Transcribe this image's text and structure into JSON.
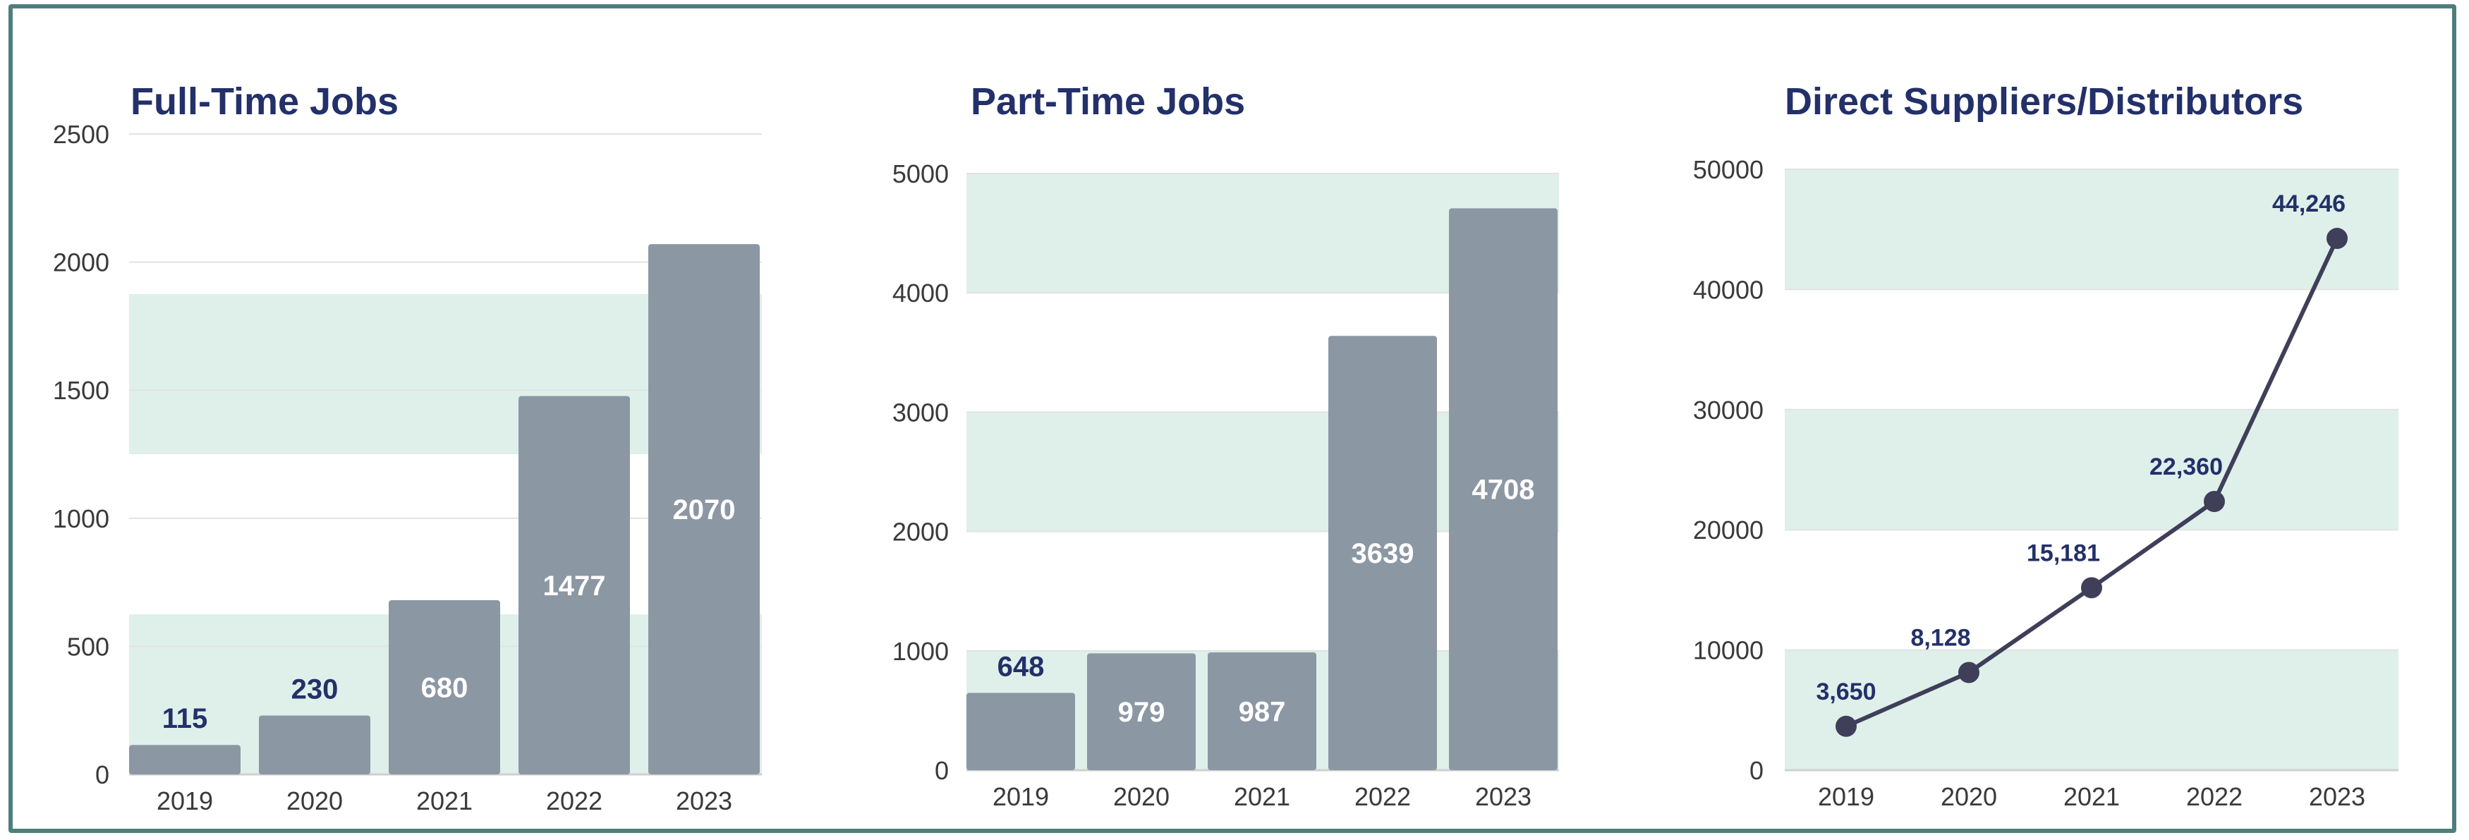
{
  "chart_data": [
    {
      "type": "bar",
      "title": "Full-Time Jobs",
      "categories": [
        "2019",
        "2020",
        "2021",
        "2022",
        "2023"
      ],
      "values": [
        115,
        230,
        680,
        1477,
        2070
      ],
      "data_labels": [
        "115",
        "230",
        "680",
        "1477",
        "2070"
      ],
      "ylim": [
        0,
        2500
      ],
      "yticks": [
        "0",
        "500",
        "1000",
        "1500",
        "2000",
        "2500"
      ],
      "grid": true,
      "colors": {
        "bar": "#8c97a4",
        "band": "#dff0ea",
        "label_inside": "#ffffff",
        "label_outside": "#233069"
      }
    },
    {
      "type": "bar",
      "title": "Part-Time Jobs",
      "categories": [
        "2019",
        "2020",
        "2021",
        "2022",
        "2023"
      ],
      "values": [
        648,
        979,
        987,
        3639,
        4708
      ],
      "data_labels": [
        "648",
        "979",
        "987",
        "3639",
        "4708"
      ],
      "ylim": [
        0,
        5000
      ],
      "yticks": [
        "0",
        "1000",
        "2000",
        "3000",
        "4000",
        "5000"
      ],
      "grid": true,
      "colors": {
        "bar": "#8c97a4",
        "band": "#dff0ea",
        "label_inside": "#ffffff",
        "label_outside": "#233069"
      }
    },
    {
      "type": "line",
      "title": "Direct Suppliers/Distributors",
      "categories": [
        "2019",
        "2020",
        "2021",
        "2022",
        "2023"
      ],
      "values": [
        3650,
        8128,
        15181,
        22360,
        44246
      ],
      "data_labels": [
        "3,650",
        "8,128",
        "15,181",
        "22,360",
        "44,246"
      ],
      "ylim": [
        0,
        50000
      ],
      "yticks": [
        "0",
        "10000",
        "20000",
        "30000",
        "40000",
        "50000"
      ],
      "grid": true,
      "colors": {
        "line": "#3f3f5a",
        "point": "#3f3f5a",
        "band": "#dff0ea",
        "label": "#233069"
      }
    }
  ]
}
